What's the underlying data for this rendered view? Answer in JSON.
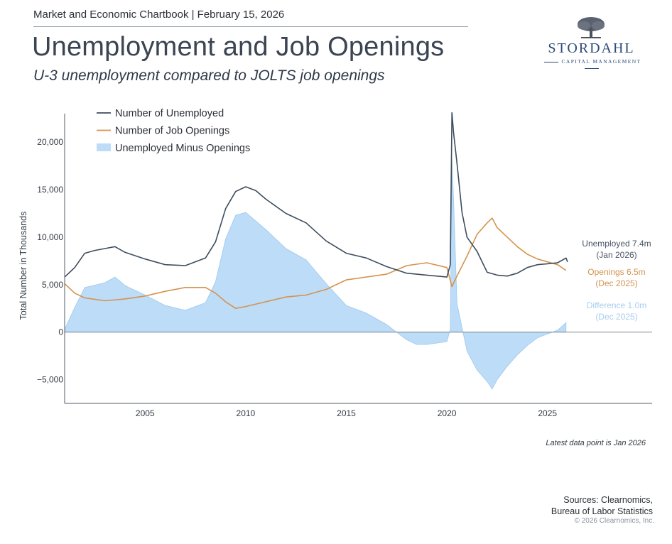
{
  "header": {
    "chartbook": "Market and Economic Chartbook | February 15, 2026",
    "title": "Unemployment and Job Openings",
    "subtitle": "U-3 unemployment compared to JOLTS job openings"
  },
  "logo": {
    "name": "STORDAHL",
    "tagline": "CAPITAL MANAGEMENT"
  },
  "footer": {
    "note": "Latest data point is Jan 2026",
    "sources_line1": "Sources: Clearnomics,",
    "sources_line2": "Bureau of Labor Statistics",
    "copyright": "© 2026 Clearnomics, Inc."
  },
  "colors": {
    "unemployed": "#3d4d5c",
    "openings": "#d4934e",
    "difference": "#bcdcf7",
    "diff_label": "#a8cdee"
  },
  "chart_data": {
    "type": "line",
    "ylabel": "Total Number in Thousands",
    "ylim": [
      -7500,
      23000
    ],
    "xlim": [
      2001.0,
      2030.2
    ],
    "yticks": [
      -5000,
      0,
      5000,
      10000,
      15000,
      20000
    ],
    "ytick_labels": [
      "−5,000",
      "0",
      "5,000",
      "10,000",
      "15,000",
      "20,000"
    ],
    "xticks": [
      2005,
      2010,
      2015,
      2020,
      2025
    ],
    "xtick_labels": [
      "2005",
      "2010",
      "2015",
      "2020",
      "2025"
    ],
    "legend": [
      "Number of Unemployed",
      "Number of Job Openings",
      "Unemployed Minus Openings"
    ],
    "legend_position": "top-left",
    "series": [
      {
        "name": "Number of Unemployed",
        "x": [
          2001.0,
          2001.5,
          2002.0,
          2002.5,
          2003.0,
          2003.5,
          2004.0,
          2005.0,
          2006.0,
          2007.0,
          2008.0,
          2008.5,
          2009.0,
          2009.5,
          2010.0,
          2010.5,
          2011.0,
          2012.0,
          2013.0,
          2014.0,
          2015.0,
          2016.0,
          2017.0,
          2018.0,
          2019.0,
          2020.0,
          2020.17,
          2020.25,
          2020.33,
          2020.5,
          2020.75,
          2021.0,
          2021.5,
          2022.0,
          2022.5,
          2023.0,
          2023.5,
          2024.0,
          2024.5,
          2025.0,
          2025.5,
          2025.92,
          2026.0
        ],
        "values": [
          5800,
          6800,
          8300,
          8600,
          8800,
          9000,
          8400,
          7700,
          7100,
          7000,
          7800,
          9500,
          13000,
          14800,
          15300,
          14900,
          14000,
          12500,
          11500,
          9600,
          8300,
          7800,
          6900,
          6200,
          6000,
          5800,
          7100,
          23100,
          21000,
          17800,
          12600,
          10000,
          8500,
          6300,
          6000,
          5900,
          6200,
          6800,
          7100,
          7200,
          7300,
          7800,
          7400
        ]
      },
      {
        "name": "Number of Job Openings",
        "x": [
          2001.0,
          2001.5,
          2002.0,
          2003.0,
          2004.0,
          2005.0,
          2006.0,
          2007.0,
          2008.0,
          2008.5,
          2009.0,
          2009.5,
          2010.0,
          2011.0,
          2012.0,
          2013.0,
          2014.0,
          2015.0,
          2016.0,
          2017.0,
          2018.0,
          2019.0,
          2020.0,
          2020.25,
          2020.5,
          2021.0,
          2021.5,
          2022.0,
          2022.25,
          2022.5,
          2023.0,
          2023.5,
          2024.0,
          2024.5,
          2025.0,
          2025.5,
          2025.92
        ],
        "values": [
          5100,
          4100,
          3600,
          3300,
          3500,
          3800,
          4300,
          4700,
          4700,
          4100,
          3200,
          2500,
          2700,
          3200,
          3700,
          3900,
          4500,
          5500,
          5800,
          6100,
          7000,
          7300,
          6800,
          4800,
          5900,
          8000,
          10300,
          11500,
          12000,
          11000,
          10000,
          9000,
          8200,
          7700,
          7400,
          7100,
          6500
        ]
      },
      {
        "name": "Unemployed Minus Openings",
        "x": [
          2001.0,
          2001.5,
          2002.0,
          2003.0,
          2003.5,
          2004.0,
          2005.0,
          2006.0,
          2007.0,
          2008.0,
          2008.5,
          2009.0,
          2009.5,
          2010.0,
          2011.0,
          2012.0,
          2013.0,
          2014.0,
          2015.0,
          2016.0,
          2017.0,
          2018.0,
          2018.5,
          2019.0,
          2020.0,
          2020.17,
          2020.25,
          2020.33,
          2020.5,
          2021.0,
          2021.5,
          2022.0,
          2022.25,
          2022.5,
          2023.0,
          2023.5,
          2024.0,
          2024.5,
          2025.0,
          2025.5,
          2025.92
        ],
        "values": [
          300,
          2600,
          4700,
          5200,
          5800,
          4900,
          3900,
          2800,
          2300,
          3100,
          5300,
          9800,
          12300,
          12600,
          10800,
          8800,
          7600,
          5100,
          2800,
          2000,
          800,
          -800,
          -1300,
          -1300,
          -1000,
          300,
          18300,
          14000,
          3000,
          -2000,
          -4000,
          -5200,
          -6000,
          -5000,
          -3600,
          -2400,
          -1400,
          -600,
          -200,
          200,
          1000
        ]
      }
    ],
    "end_labels": [
      {
        "line1": "Unemployed 7.4m",
        "line2": "(Jan 2026)"
      },
      {
        "line1": "Openings 6.5m",
        "line2": "(Dec 2025)"
      },
      {
        "line1": "Difference 1.0m",
        "line2": "(Dec 2025)"
      }
    ]
  }
}
